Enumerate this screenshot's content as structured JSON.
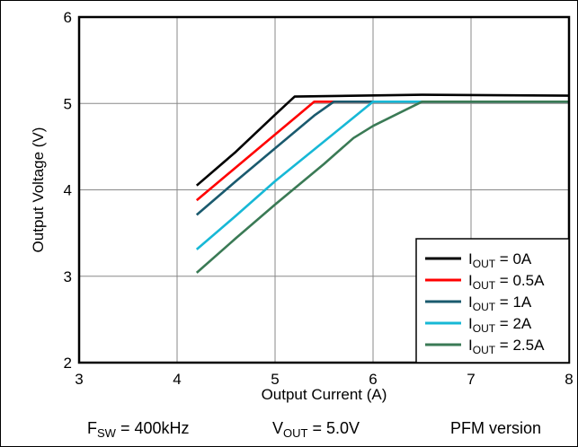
{
  "chart_data": {
    "type": "line",
    "xlabel": "Output Current (A)",
    "ylabel": "Output Voltage (V)",
    "xlim": [
      3,
      8
    ],
    "ylim": [
      2,
      6
    ],
    "xticks": [
      "3",
      "4",
      "5",
      "6",
      "7",
      "8"
    ],
    "yticks": [
      "2",
      "3",
      "4",
      "5",
      "6"
    ],
    "grid": true,
    "legend_position": "bottom-right",
    "series": [
      {
        "name": "I_OUT = 0A",
        "label_main": "I",
        "label_sub": "OUT",
        "label_rest": " = 0A",
        "color": "#000000",
        "points": [
          [
            4.2,
            4.05
          ],
          [
            4.6,
            4.44
          ],
          [
            5.0,
            4.87
          ],
          [
            5.2,
            5.08
          ],
          [
            6.5,
            5.1
          ],
          [
            8.0,
            5.09
          ]
        ]
      },
      {
        "name": "I_OUT = 0.5A",
        "label_main": "I",
        "label_sub": "OUT",
        "label_rest": " = 0.5A",
        "color": "#ff0000",
        "points": [
          [
            4.2,
            3.88
          ],
          [
            4.6,
            4.26
          ],
          [
            5.0,
            4.64
          ],
          [
            5.4,
            5.02
          ],
          [
            8.0,
            5.02
          ]
        ]
      },
      {
        "name": "I_OUT = 1A",
        "label_main": "I",
        "label_sub": "OUT",
        "label_rest": " = 1A",
        "color": "#1a5a6e",
        "points": [
          [
            4.2,
            3.71
          ],
          [
            4.6,
            4.1
          ],
          [
            5.0,
            4.48
          ],
          [
            5.4,
            4.86
          ],
          [
            5.6,
            5.02
          ],
          [
            8.0,
            5.02
          ]
        ]
      },
      {
        "name": "I_OUT = 2A",
        "label_main": "I",
        "label_sub": "OUT",
        "label_rest": " = 2A",
        "color": "#17b8d6",
        "points": [
          [
            4.2,
            3.31
          ],
          [
            4.6,
            3.7
          ],
          [
            5.0,
            4.1
          ],
          [
            5.5,
            4.56
          ],
          [
            6.0,
            5.02
          ],
          [
            8.0,
            5.02
          ]
        ]
      },
      {
        "name": "I_OUT = 2.5A",
        "label_main": "I",
        "label_sub": "OUT",
        "label_rest": " = 2.5A",
        "color": "#3a7a55",
        "points": [
          [
            4.2,
            3.04
          ],
          [
            4.6,
            3.44
          ],
          [
            5.0,
            3.83
          ],
          [
            5.5,
            4.3
          ],
          [
            5.8,
            4.6
          ],
          [
            6.0,
            4.74
          ],
          [
            6.5,
            5.02
          ],
          [
            8.0,
            5.02
          ]
        ]
      }
    ]
  },
  "conditions": {
    "fsw_main": "F",
    "fsw_sub": "SW",
    "fsw_rest": " = 400kHz",
    "vout_main": "V",
    "vout_sub": "OUT",
    "vout_rest": " = 5.0V",
    "version": "PFM version"
  }
}
